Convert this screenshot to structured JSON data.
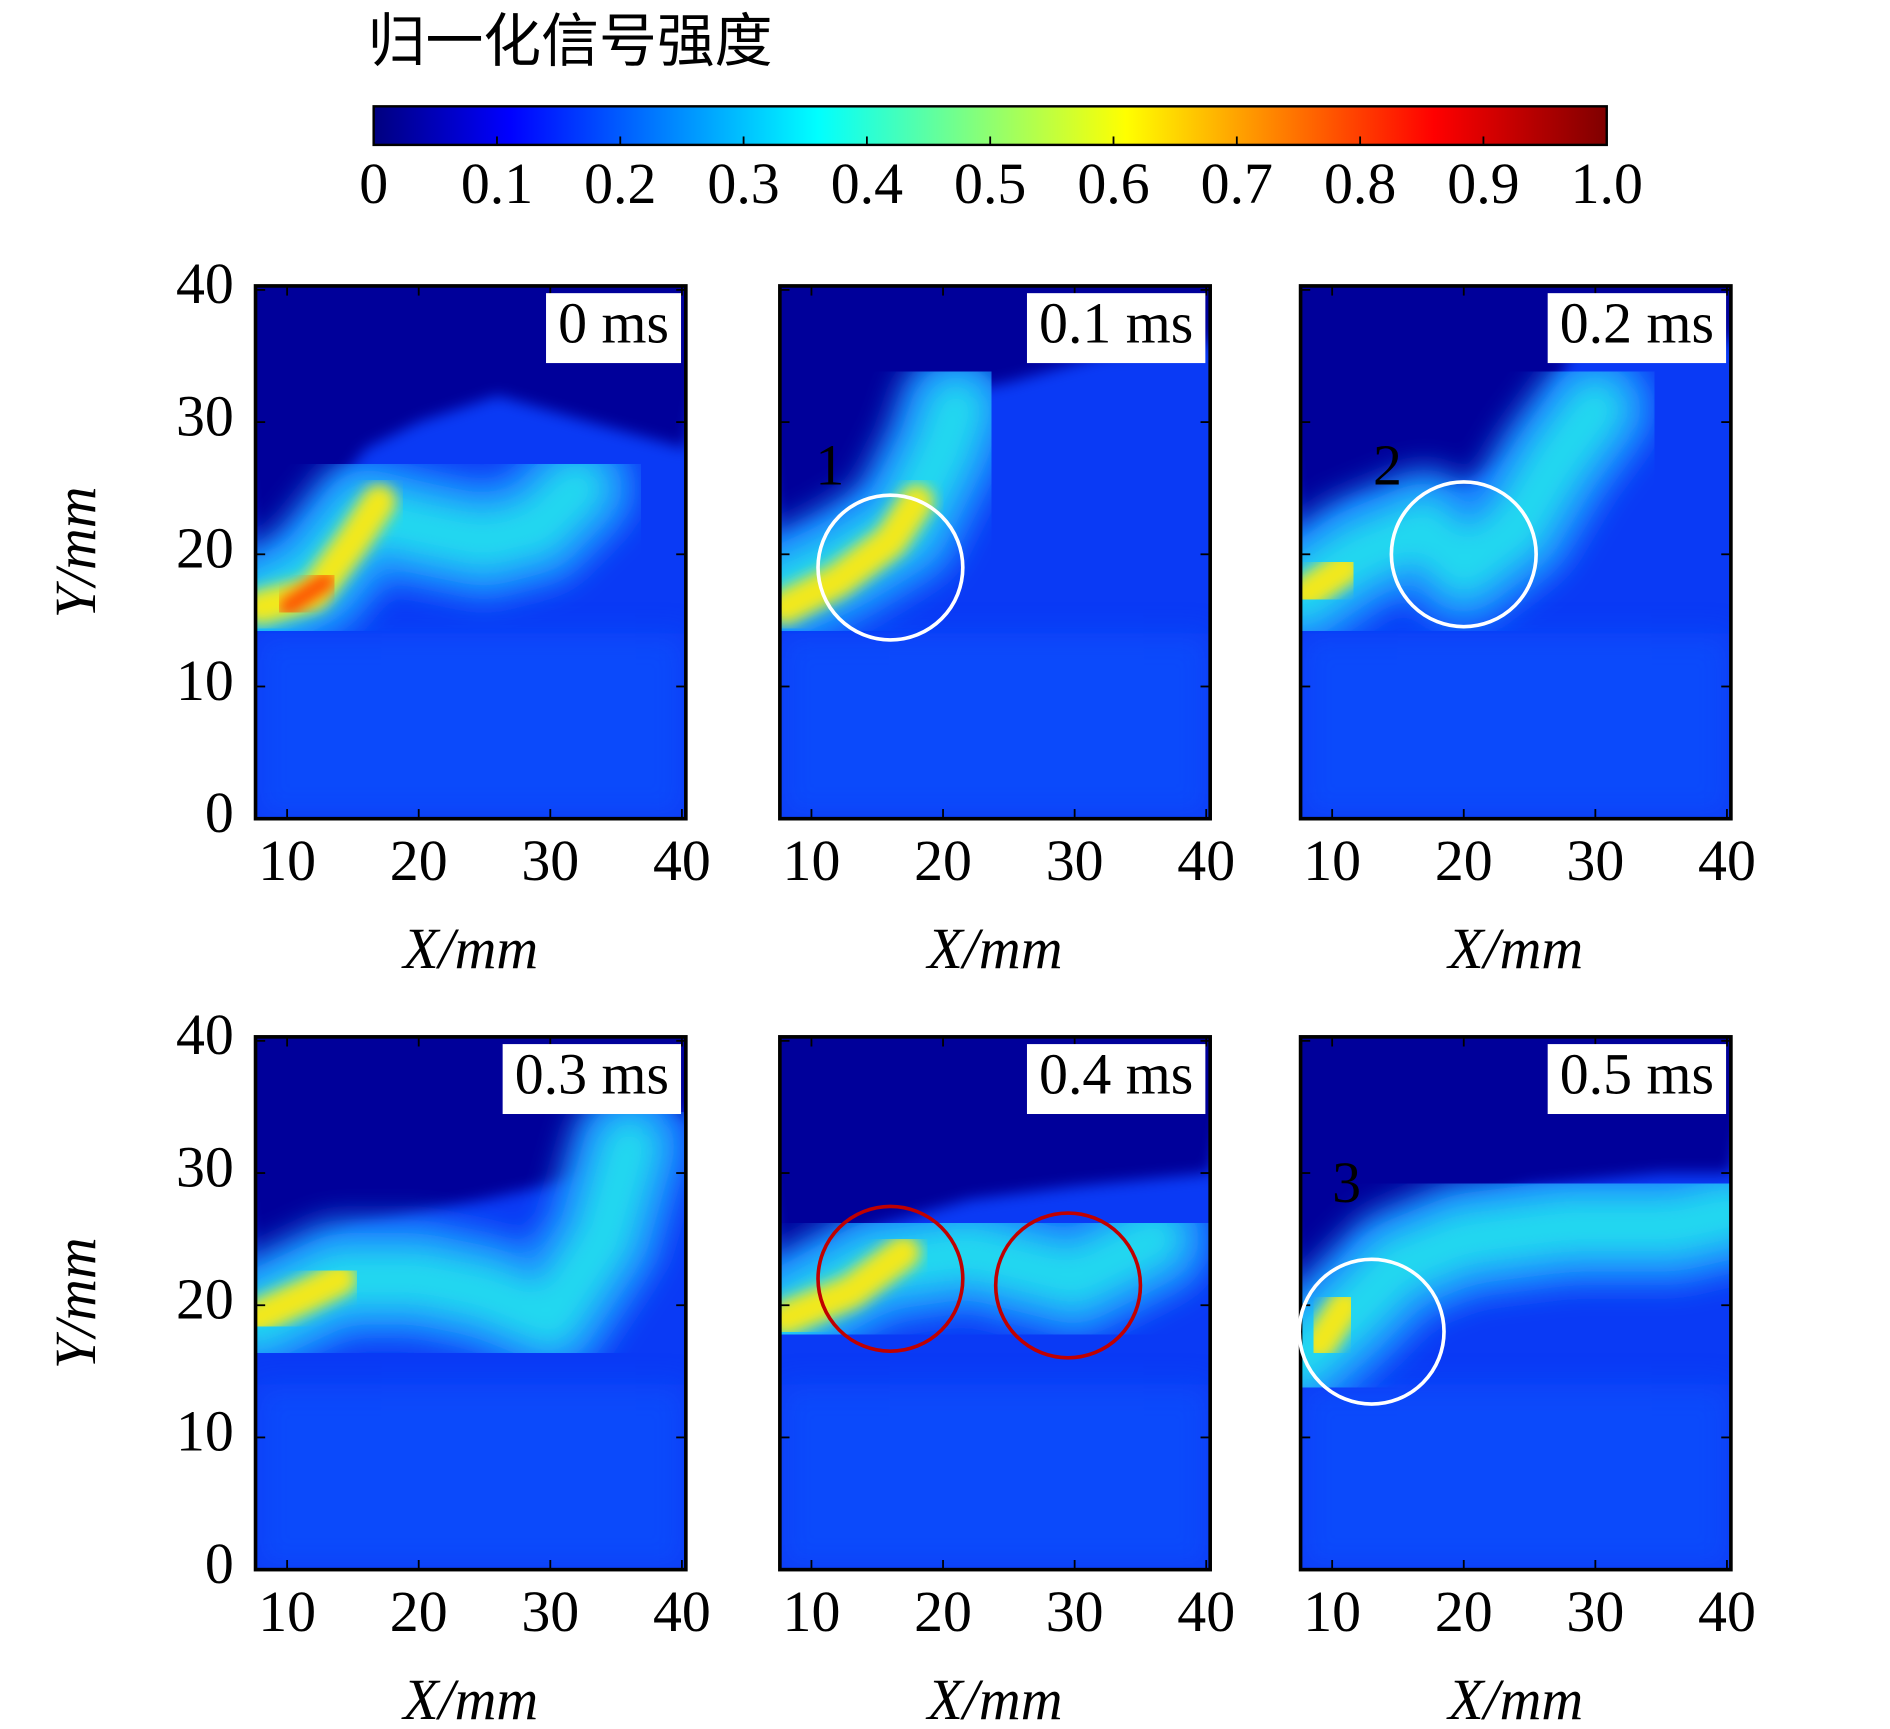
{
  "colorbar": {
    "title": "归一化信号强度",
    "clim": [
      0,
      1
    ],
    "ticks": [
      0,
      0.1,
      0.2,
      0.3,
      0.4,
      0.5,
      0.6,
      0.7,
      0.8,
      0.9,
      {
        "value": 1,
        "label": "1.0"
      }
    ]
  },
  "chart_data": [
    {
      "type": "heatmap",
      "label": "0 ms",
      "xlabel": "X/mm",
      "ylabel": "Y/mm",
      "xlim": [
        7.6,
        40.3
      ],
      "ylim": [
        0,
        40.3
      ],
      "xticks": [
        10,
        20,
        30,
        40
      ],
      "yticks": [
        0,
        10,
        20,
        30,
        40
      ]
    },
    {
      "type": "heatmap",
      "label": "0.1 ms",
      "xlabel": "X/mm",
      "xlim": [
        7.6,
        40.3
      ],
      "ylim": [
        0,
        40.3
      ],
      "xticks": [
        10,
        20,
        30,
        40
      ],
      "yticks": [
        0,
        10,
        20,
        30,
        40
      ],
      "annotations": [
        {
          "text": "1"
        }
      ]
    },
    {
      "type": "heatmap",
      "label": "0.2 ms",
      "xlabel": "X/mm",
      "xlim": [
        7.6,
        40.3
      ],
      "ylim": [
        0,
        40.3
      ],
      "xticks": [
        10,
        20,
        30,
        40
      ],
      "yticks": [
        0,
        10,
        20,
        30,
        40
      ],
      "annotations": [
        {
          "text": "2"
        }
      ]
    },
    {
      "type": "heatmap",
      "label": "0.3 ms",
      "xlabel": "X/mm",
      "ylabel": "Y/mm",
      "xlim": [
        7.6,
        40.3
      ],
      "ylim": [
        0,
        40.3
      ],
      "xticks": [
        10,
        20,
        30,
        40
      ],
      "yticks": [
        0,
        10,
        20,
        30,
        40
      ]
    },
    {
      "type": "heatmap",
      "label": "0.4 ms",
      "xlabel": "X/mm",
      "xlim": [
        7.6,
        40.3
      ],
      "ylim": [
        0,
        40.3
      ],
      "xticks": [
        10,
        20,
        30,
        40
      ],
      "yticks": [
        0,
        10,
        20,
        30,
        40
      ]
    },
    {
      "type": "heatmap",
      "label": "0.5 ms",
      "xlabel": "X/mm",
      "xlim": [
        7.6,
        40.3
      ],
      "ylim": [
        0,
        40.3
      ],
      "xticks": [
        10,
        20,
        30,
        40
      ],
      "yticks": [
        0,
        10,
        20,
        30,
        40
      ],
      "annotations": [
        {
          "text": "3"
        }
      ]
    }
  ]
}
